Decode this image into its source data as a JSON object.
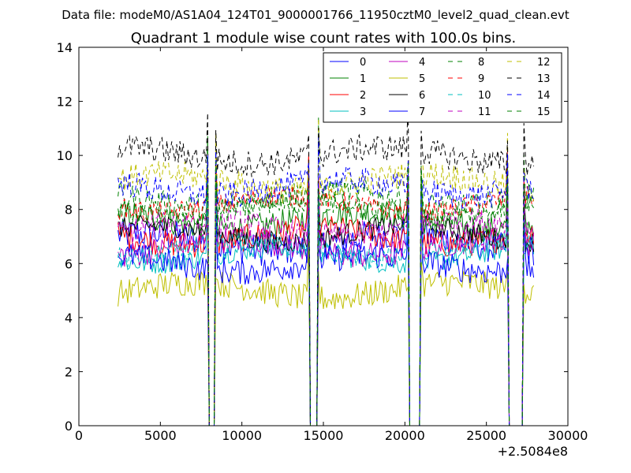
{
  "chart_data": {
    "type": "line",
    "suptitle": "Data file: modeM0/AS1A04_124T01_9000001766_11950cztM0_level2_quad_clean.evt",
    "title": "Quadrant 1 module wise count rates with 100.0s bins.",
    "xlabel": "",
    "ylabel": "",
    "x_offset_label": "+2.5084e8",
    "xlim": [
      0,
      30000
    ],
    "ylim": [
      0,
      14
    ],
    "x_ticks": [
      "0",
      "5000",
      "10000",
      "15000",
      "20000",
      "25000",
      "30000"
    ],
    "y_ticks": [
      "0",
      "2",
      "4",
      "6",
      "8",
      "10",
      "12",
      "14"
    ],
    "legend_position": "top-right",
    "legend_columns": 4,
    "data_range_x": [
      2400,
      27900
    ],
    "gaps": [
      [
        8000,
        8300
      ],
      [
        14200,
        14600
      ],
      [
        20300,
        20900
      ],
      [
        26400,
        27200
      ]
    ],
    "series": [
      {
        "name": "0",
        "color": "#0000ff",
        "style": "solid",
        "mean": 6.8,
        "noise": 0.6
      },
      {
        "name": "1",
        "color": "#008000",
        "style": "solid",
        "mean": 7.6,
        "noise": 0.5
      },
      {
        "name": "2",
        "color": "#ff0000",
        "style": "solid",
        "mean": 7.0,
        "noise": 0.5
      },
      {
        "name": "3",
        "color": "#00bfbf",
        "style": "solid",
        "mean": 6.3,
        "noise": 0.4
      },
      {
        "name": "4",
        "color": "#bf00bf",
        "style": "solid",
        "mean": 6.6,
        "noise": 0.5
      },
      {
        "name": "5",
        "color": "#bfbf00",
        "style": "solid",
        "mean": 5.0,
        "noise": 0.5
      },
      {
        "name": "6",
        "color": "#000000",
        "style": "solid",
        "mean": 7.1,
        "noise": 0.4
      },
      {
        "name": "7",
        "color": "#0000ff",
        "style": "solid",
        "mean": 6.0,
        "noise": 0.5
      },
      {
        "name": "8",
        "color": "#008000",
        "style": "dashed",
        "mean": 8.4,
        "noise": 0.5
      },
      {
        "name": "9",
        "color": "#ff0000",
        "style": "dashed",
        "mean": 8.2,
        "noise": 0.4
      },
      {
        "name": "10",
        "color": "#00bfbf",
        "style": "dashed",
        "mean": 6.5,
        "noise": 0.4
      },
      {
        "name": "11",
        "color": "#bf00bf",
        "style": "dashed",
        "mean": 7.3,
        "noise": 0.5
      },
      {
        "name": "12",
        "color": "#bfbf00",
        "style": "dashed",
        "mean": 9.0,
        "noise": 0.5
      },
      {
        "name": "13",
        "color": "#000000",
        "style": "dashed",
        "mean": 10.0,
        "noise": 0.5
      },
      {
        "name": "14",
        "color": "#0000ff",
        "style": "dashed",
        "mean": 8.8,
        "noise": 0.5
      },
      {
        "name": "15",
        "color": "#008000",
        "style": "dashed",
        "mean": 8.0,
        "noise": 0.4
      }
    ]
  }
}
